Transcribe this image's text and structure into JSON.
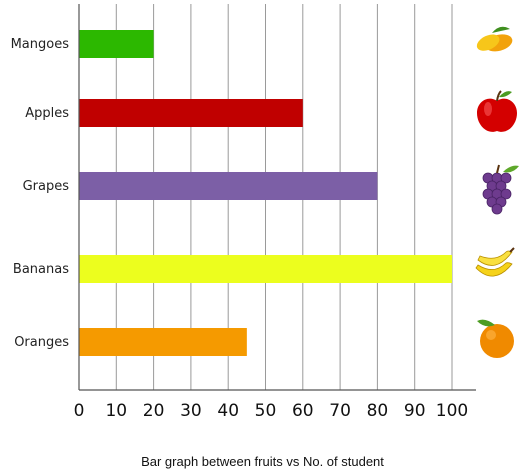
{
  "chart_data": {
    "type": "bar",
    "orientation": "horizontal",
    "categories": [
      "Mangoes",
      "Apples",
      "Grapes",
      "Bananas",
      "Oranges"
    ],
    "values": [
      20,
      60,
      80,
      100,
      45
    ],
    "colors": [
      "#2cb800",
      "#c00000",
      "#7c5fa6",
      "#ecfe1e",
      "#f59a00"
    ],
    "icons": [
      "mango-icon",
      "apple-icon",
      "grapes-icon",
      "banana-icon",
      "orange-icon"
    ],
    "xlim": [
      0,
      100
    ],
    "xticks": [
      0,
      10,
      20,
      30,
      40,
      50,
      60,
      70,
      80,
      90,
      100
    ],
    "grid": true,
    "caption": "Bar graph between fruits vs No. of student"
  }
}
